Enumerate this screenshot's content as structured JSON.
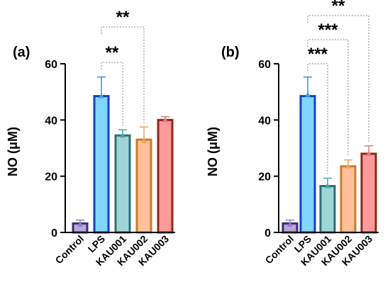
{
  "chart_data": [
    {
      "type": "bar",
      "panel_label": "(a)",
      "ylabel": "NO (μM)",
      "ylim": [
        0,
        60
      ],
      "yticks": [
        0,
        20,
        40,
        60
      ],
      "categories": [
        "Control",
        "LPS",
        "KAU001",
        "KAU002",
        "KAU003"
      ],
      "values": [
        3.2,
        48.5,
        34.5,
        33.0,
        40.0
      ],
      "errors": [
        1.2,
        6.8,
        2.0,
        4.5,
        1.2
      ],
      "points": [
        2.8,
        48.5,
        34.5,
        32.5,
        40.0
      ],
      "colors": {
        "fill": [
          "#bba7d6",
          "#80d6ff",
          "#9fd5d6",
          "#ffc09a",
          "#ff9a9a"
        ],
        "stroke": [
          "#3a2e70",
          "#1a3fbf",
          "#2f6f74",
          "#cc7a2a",
          "#8b2a1a"
        ],
        "point": [
          "#8e7fd0",
          "#38a0e8",
          "#43a4b8",
          "#f0a060",
          "#e07a7a"
        ]
      },
      "significance": [
        {
          "from": 1,
          "to": 2,
          "label": "**"
        },
        {
          "from": 1,
          "to": 3,
          "label": "**"
        }
      ]
    },
    {
      "type": "bar",
      "panel_label": "(b)",
      "ylabel": "NO (μM)",
      "ylim": [
        0,
        60
      ],
      "yticks": [
        0,
        20,
        40,
        60
      ],
      "categories": [
        "Control",
        "LPS",
        "KAU001",
        "KAU002",
        "KAU003"
      ],
      "values": [
        3.2,
        48.5,
        16.5,
        23.5,
        28.0
      ],
      "errors": [
        1.2,
        6.8,
        2.8,
        2.3,
        2.8
      ],
      "points": [
        2.8,
        49.0,
        16.5,
        23.5,
        28.0
      ],
      "colors": {
        "fill": [
          "#bba7d6",
          "#80d6ff",
          "#9fd5d6",
          "#ffc09a",
          "#ff9a9a"
        ],
        "stroke": [
          "#3a2e70",
          "#1a3fbf",
          "#2f6f74",
          "#cc7a2a",
          "#8b2a1a"
        ],
        "point": [
          "#8e7fd0",
          "#38a0e8",
          "#43a4b8",
          "#f0a060",
          "#e07a7a"
        ]
      },
      "significance": [
        {
          "from": 1,
          "to": 2,
          "label": "***"
        },
        {
          "from": 1,
          "to": 3,
          "label": "***"
        },
        {
          "from": 1,
          "to": 4,
          "label": "**"
        }
      ]
    }
  ]
}
